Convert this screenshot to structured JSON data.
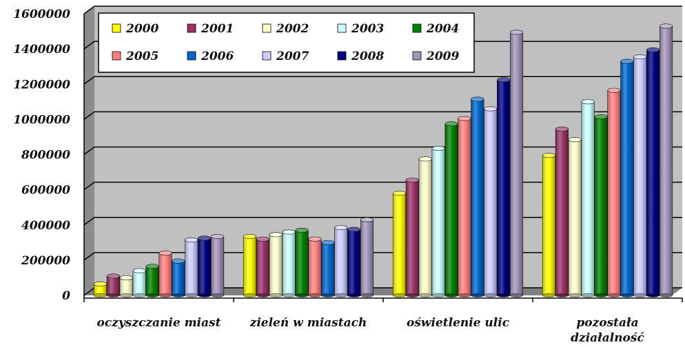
{
  "chart_data": {
    "type": "bar",
    "title": "",
    "xlabel": "",
    "ylabel": "",
    "categories": [
      "oczyszczanie miast",
      "zieleń w miastach",
      "oświetlenie ulic",
      "pozostała działalność"
    ],
    "ylim": [
      0,
      1600000
    ],
    "yticks": [
      "0",
      "200000",
      "400000",
      "600000",
      "800000",
      "1000000",
      "1200000",
      "1400000",
      "1600000"
    ],
    "grid": true,
    "legend_position": "top-left",
    "series": [
      {
        "name": "2000",
        "color": "#ffff00",
        "values": [
          65000,
          335000,
          580000,
          795000
        ]
      },
      {
        "name": "2001",
        "color": "#993366",
        "values": [
          110000,
          320000,
          655000,
          945000
        ]
      },
      {
        "name": "2002",
        "color": "#ffffcc",
        "values": [
          100000,
          345000,
          775000,
          885000
        ]
      },
      {
        "name": "2003",
        "color": "#ccffff",
        "values": [
          140000,
          360000,
          835000,
          1100000
        ]
      },
      {
        "name": "2004",
        "color": "#008000",
        "values": [
          165000,
          370000,
          975000,
          1015000
        ]
      },
      {
        "name": "2005",
        "color": "#ff8080",
        "values": [
          240000,
          320000,
          1005000,
          1165000
        ]
      },
      {
        "name": "2006",
        "color": "#0066cc",
        "values": [
          195000,
          300000,
          1115000,
          1330000
        ]
      },
      {
        "name": "2007",
        "color": "#ccccff",
        "values": [
          315000,
          385000,
          1060000,
          1355000
        ]
      },
      {
        "name": "2008",
        "color": "#000080",
        "values": [
          325000,
          375000,
          1225000,
          1395000
        ]
      },
      {
        "name": "2009",
        "color": "#a294b8",
        "values": [
          335000,
          430000,
          1495000,
          1530000
        ]
      }
    ]
  }
}
